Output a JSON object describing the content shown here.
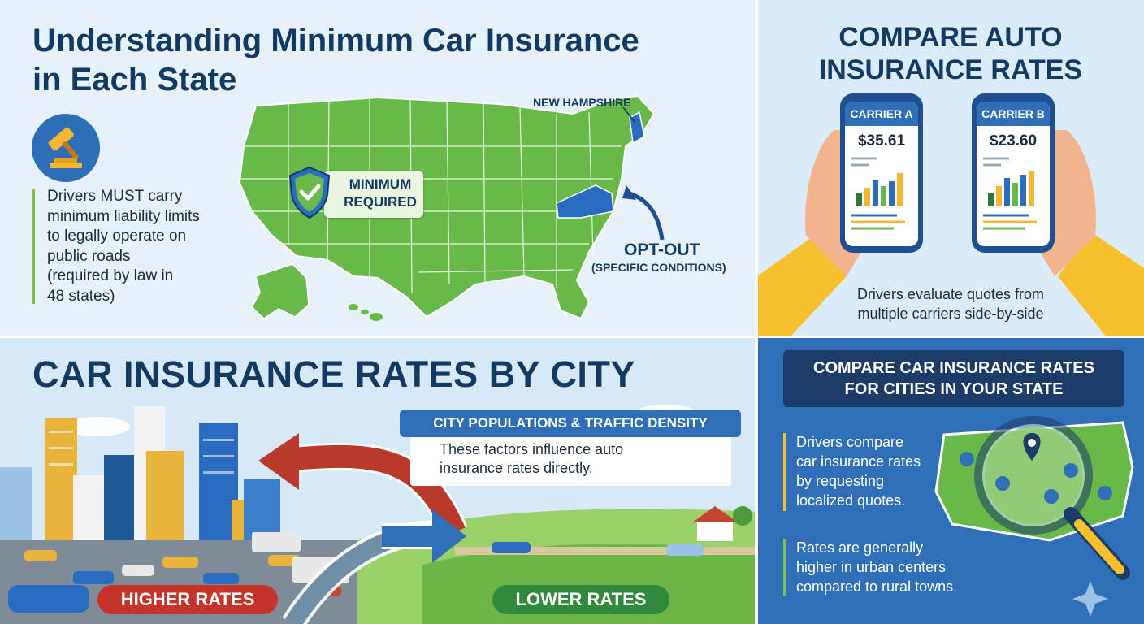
{
  "minimum": {
    "title_line1": "Understanding Minimum Car Insurance",
    "title_line2": "in Each State",
    "description": [
      "Drivers MUST carry",
      "minimum liability limits",
      "to legally operate on",
      "public roads",
      "(required by law in",
      "48 states)"
    ],
    "map_label_nh": "NEW HAMPSHIRE",
    "badge_line1": "MINIMUM",
    "badge_line2": "REQUIRED",
    "optout_title": "OPT-OUT",
    "optout_sub": "(SPECIFIC CONDITIONS)",
    "colors": {
      "map_green": "#69b94a",
      "highlight_blue": "#2a6cc0",
      "title_navy": "#123a62"
    }
  },
  "compare": {
    "title_line1": "COMPARE AUTO",
    "title_line2": "INSURANCE RATES",
    "carrier_a": {
      "name": "CARRIER A",
      "price": "$35.61"
    },
    "carrier_b": {
      "name": "CARRIER B",
      "price": "$23.60"
    },
    "caption_line1": "Drivers evaluate quotes from",
    "caption_line2": "multiple carriers side-by-side"
  },
  "city": {
    "title": "CAR INSURANCE RATES BY CITY",
    "factors_label": "CITY POPULATIONS & TRAFFIC DENSITY",
    "factors_text_line1": "These factors influence auto",
    "factors_text_line2": "insurance rates directly.",
    "higher_label": "HIGHER RATES",
    "lower_label": "LOWER RATES"
  },
  "state_compare": {
    "title_line1": "COMPARE CAR INSURANCE RATES",
    "title_line2": "FOR CITIES IN YOUR STATE",
    "text1": [
      "Drivers compare",
      "car insurance rates",
      "by requesting",
      "localized quotes."
    ],
    "text2": [
      "Rates are generally",
      "higher in urban centers",
      "compared to rural towns."
    ]
  }
}
